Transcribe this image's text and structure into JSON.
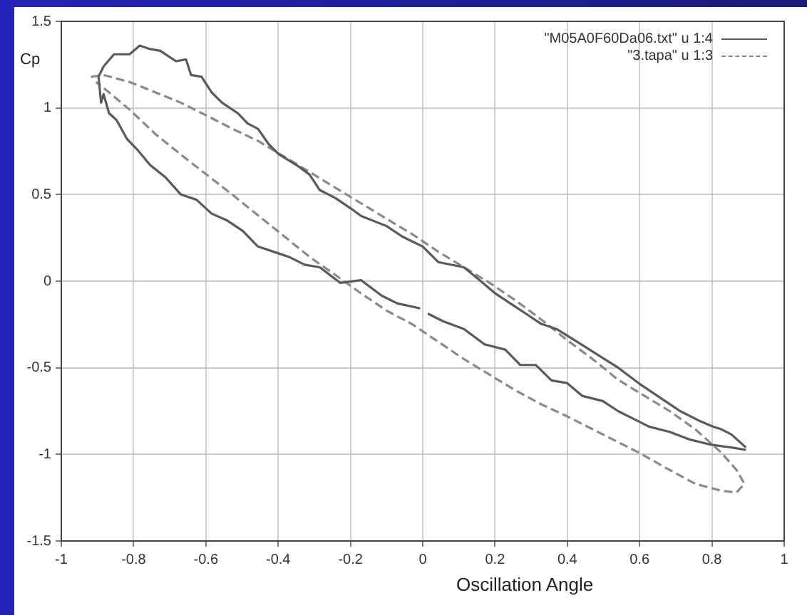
{
  "chart_data": {
    "type": "line",
    "xlabel": "Oscillation Angle",
    "ylabel": "Cp",
    "xlim": [
      -1,
      1
    ],
    "ylim": [
      -1.5,
      1.5
    ],
    "xticks": [
      -1,
      -0.8,
      -0.6,
      -0.4,
      -0.2,
      0,
      0.2,
      0.4,
      0.6,
      0.8,
      1
    ],
    "yticks": [
      -1.5,
      -1,
      -0.5,
      0,
      0.5,
      1,
      1.5
    ],
    "grid": true,
    "legend": "top right",
    "marker": "none",
    "series": [
      {
        "name": "\"M05A0F60Da06.txt\" u 1:4",
        "color": "#5a5a5a",
        "line_style": "solid",
        "x": [
          0.894,
          0.854,
          0.826,
          0.804,
          0.769,
          0.712,
          0.669,
          0.598,
          0.541,
          0.484,
          0.427,
          0.37,
          0.327,
          0.285,
          0.242,
          0.199,
          0.157,
          0.114,
          0.043,
          0,
          -0.057,
          -0.1,
          -0.171,
          -0.199,
          -0.242,
          -0.285,
          -0.313,
          -0.342,
          -0.399,
          -0.427,
          -0.456,
          -0.484,
          -0.512,
          -0.555,
          -0.584,
          -0.612,
          -0.641,
          -0.655,
          -0.683,
          -0.726,
          -0.754,
          -0.783,
          -0.811,
          -0.854,
          -0.883,
          -0.897,
          -0.89,
          -0.883,
          -0.868,
          -0.847,
          -0.818,
          -0.79,
          -0.754,
          -0.712,
          -0.669,
          -0.626,
          -0.584,
          -0.541,
          -0.498,
          -0.456,
          -0.413,
          -0.37,
          -0.327,
          -0.285,
          -0.228,
          -0.171,
          -0.114,
          -0.071,
          -0.007,
          0.004,
          0.014,
          0.057,
          0.114,
          0.171,
          0.228,
          0.27,
          0.313,
          0.356,
          0.399,
          0.441,
          0.498,
          0.541,
          0.584,
          0.626,
          0.683,
          0.74,
          0.797,
          0.854,
          0.894
        ],
        "values": [
          -0.96,
          -0.885,
          -0.855,
          -0.84,
          -0.81,
          -0.75,
          -0.69,
          -0.59,
          -0.5,
          -0.425,
          -0.35,
          -0.276,
          -0.246,
          -0.187,
          -0.128,
          -0.068,
          0.006,
          0.08,
          0.11,
          0.2,
          0.258,
          0.318,
          0.377,
          0.42,
          0.48,
          0.526,
          0.615,
          0.66,
          0.734,
          0.793,
          0.88,
          0.91,
          0.97,
          1.03,
          1.09,
          1.18,
          1.19,
          1.28,
          1.27,
          1.33,
          1.34,
          1.36,
          1.31,
          1.31,
          1.24,
          1.18,
          1.03,
          1.08,
          0.97,
          0.93,
          0.82,
          0.76,
          0.67,
          0.6,
          0.5,
          0.47,
          0.39,
          0.35,
          0.29,
          0.2,
          0.17,
          0.14,
          0.095,
          0.08,
          -0.01,
          0.006,
          -0.083,
          -0.128,
          -0.157,
          null,
          -0.187,
          -0.232,
          -0.276,
          -0.365,
          -0.395,
          -0.484,
          -0.484,
          -0.573,
          -0.588,
          -0.662,
          -0.692,
          -0.751,
          -0.796,
          -0.84,
          -0.87,
          -0.915,
          -0.944,
          -0.96,
          -0.974
        ]
      },
      {
        "name": "\"3.tapa\" u 1:3",
        "color": "#8a8a8a",
        "line_style": "dashed",
        "x": [
          -0.918,
          -0.883,
          -0.811,
          -0.74,
          -0.669,
          -0.598,
          -0.527,
          -0.456,
          -0.384,
          -0.313,
          -0.242,
          -0.171,
          -0.1,
          -0.028,
          0.043,
          0.114,
          0.185,
          0.256,
          0.327,
          0.399,
          0.47,
          0.541,
          0.612,
          0.683,
          0.754,
          0.826,
          0.868,
          0.89,
          0.868,
          0.826,
          0.754,
          0.683,
          0.598,
          0.541,
          0.47,
          0.399,
          0.327,
          0.256,
          0.185,
          0.114,
          0.043,
          -0.028,
          -0.1,
          -0.171,
          -0.242,
          -0.313,
          -0.384,
          -0.456,
          -0.527,
          -0.598,
          -0.669,
          -0.74,
          -0.811,
          -0.868,
          -0.904
        ],
        "values": [
          1.18,
          1.19,
          1.15,
          1.09,
          1.03,
          0.956,
          0.88,
          0.81,
          0.72,
          0.63,
          0.54,
          0.45,
          0.36,
          0.27,
          0.17,
          0.08,
          -0.01,
          -0.11,
          -0.22,
          -0.34,
          -0.45,
          -0.57,
          -0.66,
          -0.75,
          -0.855,
          -0.99,
          -1.09,
          -1.17,
          -1.22,
          -1.21,
          -1.17,
          -1.09,
          -0.99,
          -0.93,
          -0.855,
          -0.78,
          -0.71,
          -0.63,
          -0.54,
          -0.45,
          -0.35,
          -0.25,
          -0.17,
          -0.07,
          0.036,
          0.14,
          0.26,
          0.38,
          0.5,
          0.615,
          0.73,
          0.85,
          0.99,
          1.09,
          1.15
        ]
      }
    ]
  }
}
